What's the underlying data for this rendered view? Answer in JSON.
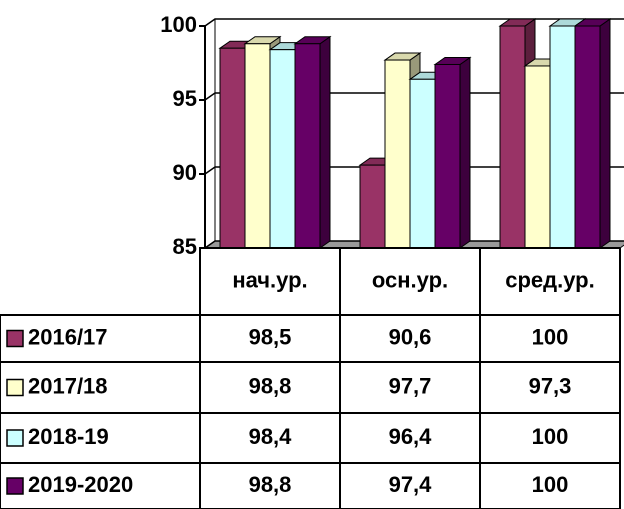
{
  "chart_data": {
    "type": "bar",
    "categories": [
      "нач.ур.",
      "осн.ур.",
      "сред.ур."
    ],
    "series": [
      {
        "name": "2016/17",
        "color": "#993366",
        "values": [
          98.5,
          90.6,
          100
        ],
        "value_labels": [
          "98,5",
          "90,6",
          "100"
        ]
      },
      {
        "name": "2017/18",
        "color": "#ffffcc",
        "values": [
          98.8,
          97.7,
          97.3
        ],
        "value_labels": [
          "98,8",
          "97,7",
          "97,3"
        ]
      },
      {
        "name": "2018-19",
        "color": "#ccffff",
        "values": [
          98.4,
          96.4,
          100
        ],
        "value_labels": [
          "98,4",
          "96,4",
          "100"
        ]
      },
      {
        "name": "2019-2020",
        "color": "#660066",
        "values": [
          98.8,
          97.4,
          100
        ],
        "value_labels": [
          "98,8",
          "97,4",
          "100"
        ]
      }
    ],
    "ylim": [
      85,
      100
    ],
    "yticks": [
      85,
      90,
      95,
      100
    ],
    "grid": true,
    "data_table": true
  }
}
